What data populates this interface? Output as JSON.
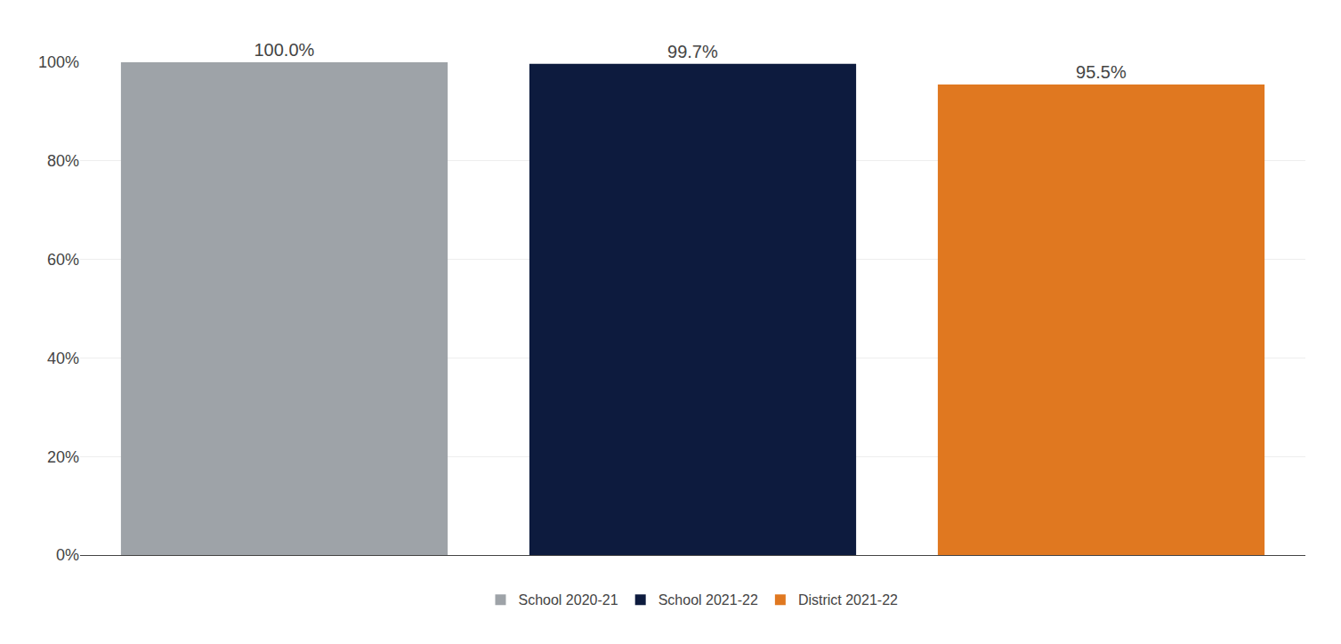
{
  "chart_data": {
    "type": "bar",
    "categories": [
      "School 2020-21",
      "School 2021-22",
      "District 2021-22"
    ],
    "values": [
      100.0,
      99.7,
      95.5
    ],
    "value_labels": [
      "100.0%",
      "99.7%",
      "95.5%"
    ],
    "colors": [
      "#9EA3A8",
      "#0D1B3E",
      "#E07820"
    ],
    "ylim": [
      0,
      100
    ],
    "yticks": [
      {
        "value": 0,
        "label": "0%"
      },
      {
        "value": 20,
        "label": "20%"
      },
      {
        "value": 40,
        "label": "40%"
      },
      {
        "value": 60,
        "label": "60%"
      },
      {
        "value": 80,
        "label": "80%"
      },
      {
        "value": 100,
        "label": "100%"
      }
    ],
    "grid": true,
    "legend": "bottom",
    "data_labels": true,
    "tick_labels": "y"
  }
}
